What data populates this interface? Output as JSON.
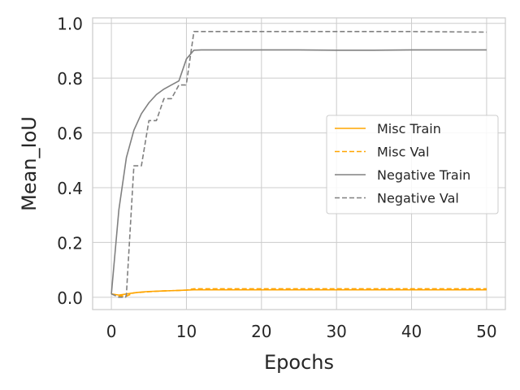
{
  "chart_data": {
    "type": "line",
    "title": "",
    "xlabel": "Epochs",
    "ylabel": "Mean_IoU",
    "xlim": [
      -2.5,
      52.5
    ],
    "ylim": [
      -0.045,
      1.02
    ],
    "xticks": [
      0,
      10,
      20,
      30,
      40,
      50
    ],
    "yticks": [
      0.0,
      0.2,
      0.4,
      0.6,
      0.8,
      1.0
    ],
    "grid": true,
    "legend_position": "center-right",
    "series": [
      {
        "name": "Misc Train",
        "color": "#FFA500",
        "dash": "solid",
        "x": [
          0,
          1,
          2,
          3,
          4,
          5,
          6,
          7,
          8,
          9,
          10,
          11,
          12,
          15,
          20,
          25,
          30,
          35,
          40,
          45,
          50
        ],
        "y": [
          0.012,
          0.008,
          0.012,
          0.016,
          0.019,
          0.021,
          0.022,
          0.023,
          0.024,
          0.025,
          0.026,
          0.027,
          0.027,
          0.027,
          0.027,
          0.027,
          0.027,
          0.027,
          0.027,
          0.027,
          0.027
        ]
      },
      {
        "name": "Misc Val",
        "color": "#FFA500",
        "dash": "dashed",
        "x": [
          0,
          1,
          2,
          3,
          4,
          5,
          6,
          7,
          8,
          9,
          10,
          11,
          12,
          15,
          20,
          25,
          30,
          35,
          40,
          45,
          50
        ],
        "y": [
          0.012,
          0.005,
          0.004,
          0.016,
          0.018,
          0.02,
          0.022,
          0.023,
          0.024,
          0.025,
          0.026,
          0.031,
          0.031,
          0.031,
          0.031,
          0.031,
          0.031,
          0.031,
          0.031,
          0.031,
          0.031
        ]
      },
      {
        "name": "Negative Train",
        "color": "#808080",
        "dash": "solid",
        "x": [
          0,
          1,
          2,
          3,
          4,
          5,
          6,
          7,
          8,
          9,
          10,
          11,
          12,
          15,
          20,
          25,
          30,
          35,
          40,
          45,
          50
        ],
        "y": [
          0.012,
          0.32,
          0.51,
          0.61,
          0.67,
          0.71,
          0.74,
          0.76,
          0.775,
          0.79,
          0.87,
          0.902,
          0.903,
          0.903,
          0.903,
          0.903,
          0.902,
          0.902,
          0.903,
          0.903,
          0.903
        ]
      },
      {
        "name": "Negative Val",
        "color": "#808080",
        "dash": "dashed",
        "x": [
          0,
          1,
          1.9,
          2,
          3,
          3.9,
          4,
          5,
          5.9,
          6,
          7,
          7.9,
          8,
          9,
          9.9,
          10,
          11,
          12,
          20,
          30,
          40,
          50
        ],
        "y": [
          0.012,
          0.0,
          0.0,
          0.01,
          0.48,
          0.48,
          0.48,
          0.645,
          0.645,
          0.645,
          0.725,
          0.725,
          0.725,
          0.775,
          0.775,
          0.78,
          0.97,
          0.97,
          0.97,
          0.97,
          0.97,
          0.968
        ]
      }
    ]
  }
}
